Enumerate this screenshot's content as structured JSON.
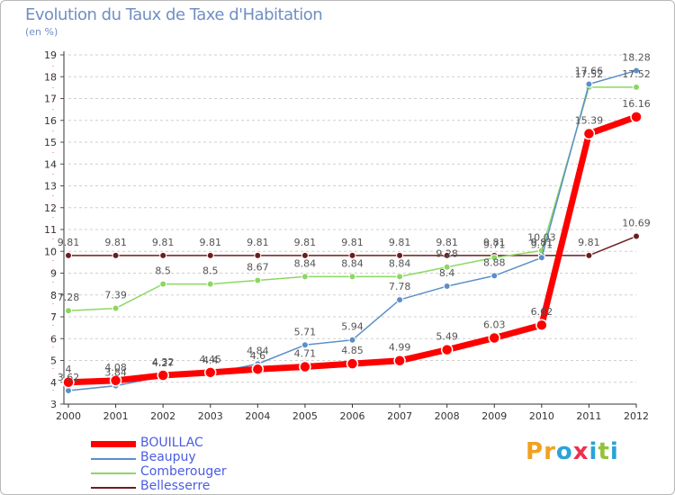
{
  "page": {
    "title": "Evolution du Taux de Taxe d'Habitation",
    "unit_label": "(en %)",
    "brand": "Proxiti",
    "brand_colors": [
      "#f2a11f",
      "#f2a11f",
      "#2aa3d8",
      "#ee2f4e",
      "#2aa3d8",
      "#93c23a",
      "#2aa3d8"
    ]
  },
  "chart_data": {
    "type": "line",
    "title": "Evolution du Taux de Taxe d'Habitation",
    "ylabel": "(en %)",
    "xlabel": "",
    "x": [
      "2000",
      "2001",
      "2002",
      "2003",
      "2004",
      "2005",
      "2006",
      "2007",
      "2008",
      "2009",
      "2010",
      "2011",
      "2012"
    ],
    "ylim": [
      3,
      19
    ],
    "yticks": [
      "3",
      "4",
      "5",
      "6",
      "7",
      "8",
      "9",
      "10",
      "11",
      "12",
      "13",
      "14",
      "15",
      "16",
      "17",
      "18",
      "19"
    ],
    "grid": "horizontal dashed",
    "legend_position": "bottom-left",
    "series": [
      {
        "name": "Bellesserre",
        "color": "#6e1c1c",
        "values": [
          9.81,
          9.81,
          9.81,
          9.81,
          9.81,
          9.81,
          9.81,
          9.81,
          9.81,
          9.81,
          9.81,
          9.81,
          10.69
        ],
        "labels": [
          "9.81",
          "9.81",
          "9.81",
          "9.81",
          "9.81",
          "9.81",
          "9.81",
          "9.81",
          "9.81",
          "9.81",
          "9.81",
          "9.81",
          "10.69"
        ]
      },
      {
        "name": "Comberouger",
        "color": "#8bd860",
        "values": [
          7.28,
          7.39,
          8.5,
          8.5,
          8.67,
          8.84,
          8.84,
          8.84,
          9.28,
          9.71,
          10.03,
          17.52,
          17.52
        ],
        "labels": [
          "7.28",
          "7.39",
          "8.5",
          "8.5",
          "8.67",
          "8.84",
          "8.84",
          "8.84",
          "9.28",
          "9.71",
          "10.03",
          "17.52",
          "17.52"
        ]
      },
      {
        "name": "Beaupuy",
        "color": "#5a8fc8",
        "values": [
          3.62,
          3.84,
          4.27,
          4.4,
          4.84,
          5.71,
          5.94,
          7.78,
          8.4,
          8.88,
          9.71,
          17.66,
          18.28
        ],
        "labels": [
          "3.62",
          "3.84",
          "4.27",
          "4.4",
          "4.84",
          "5.71",
          "5.94",
          "7.78",
          "8.4",
          "8.88",
          "9.71",
          "17.66",
          "18.28"
        ]
      },
      {
        "name": "BOUILLAC",
        "color": "#ff0000",
        "values": [
          4.0,
          4.08,
          4.32,
          4.45,
          4.6,
          4.71,
          4.85,
          4.99,
          5.49,
          6.03,
          6.62,
          15.39,
          16.16
        ],
        "labels": [
          "4",
          "4.08",
          "4.32",
          "4.45",
          "4.6",
          "4.71",
          "4.85",
          "4.99",
          "5.49",
          "6.03",
          "6.62",
          "15.39",
          "16.16"
        ]
      }
    ],
    "legend": [
      {
        "name": "BOUILLAC",
        "color": "#ff0000",
        "weight": "thick"
      },
      {
        "name": "Beaupuy",
        "color": "#5a8fc8",
        "weight": "thin"
      },
      {
        "name": "Comberouger",
        "color": "#8bd860",
        "weight": "thin"
      },
      {
        "name": "Bellesserre",
        "color": "#6e1c1c",
        "weight": "thin"
      }
    ]
  }
}
